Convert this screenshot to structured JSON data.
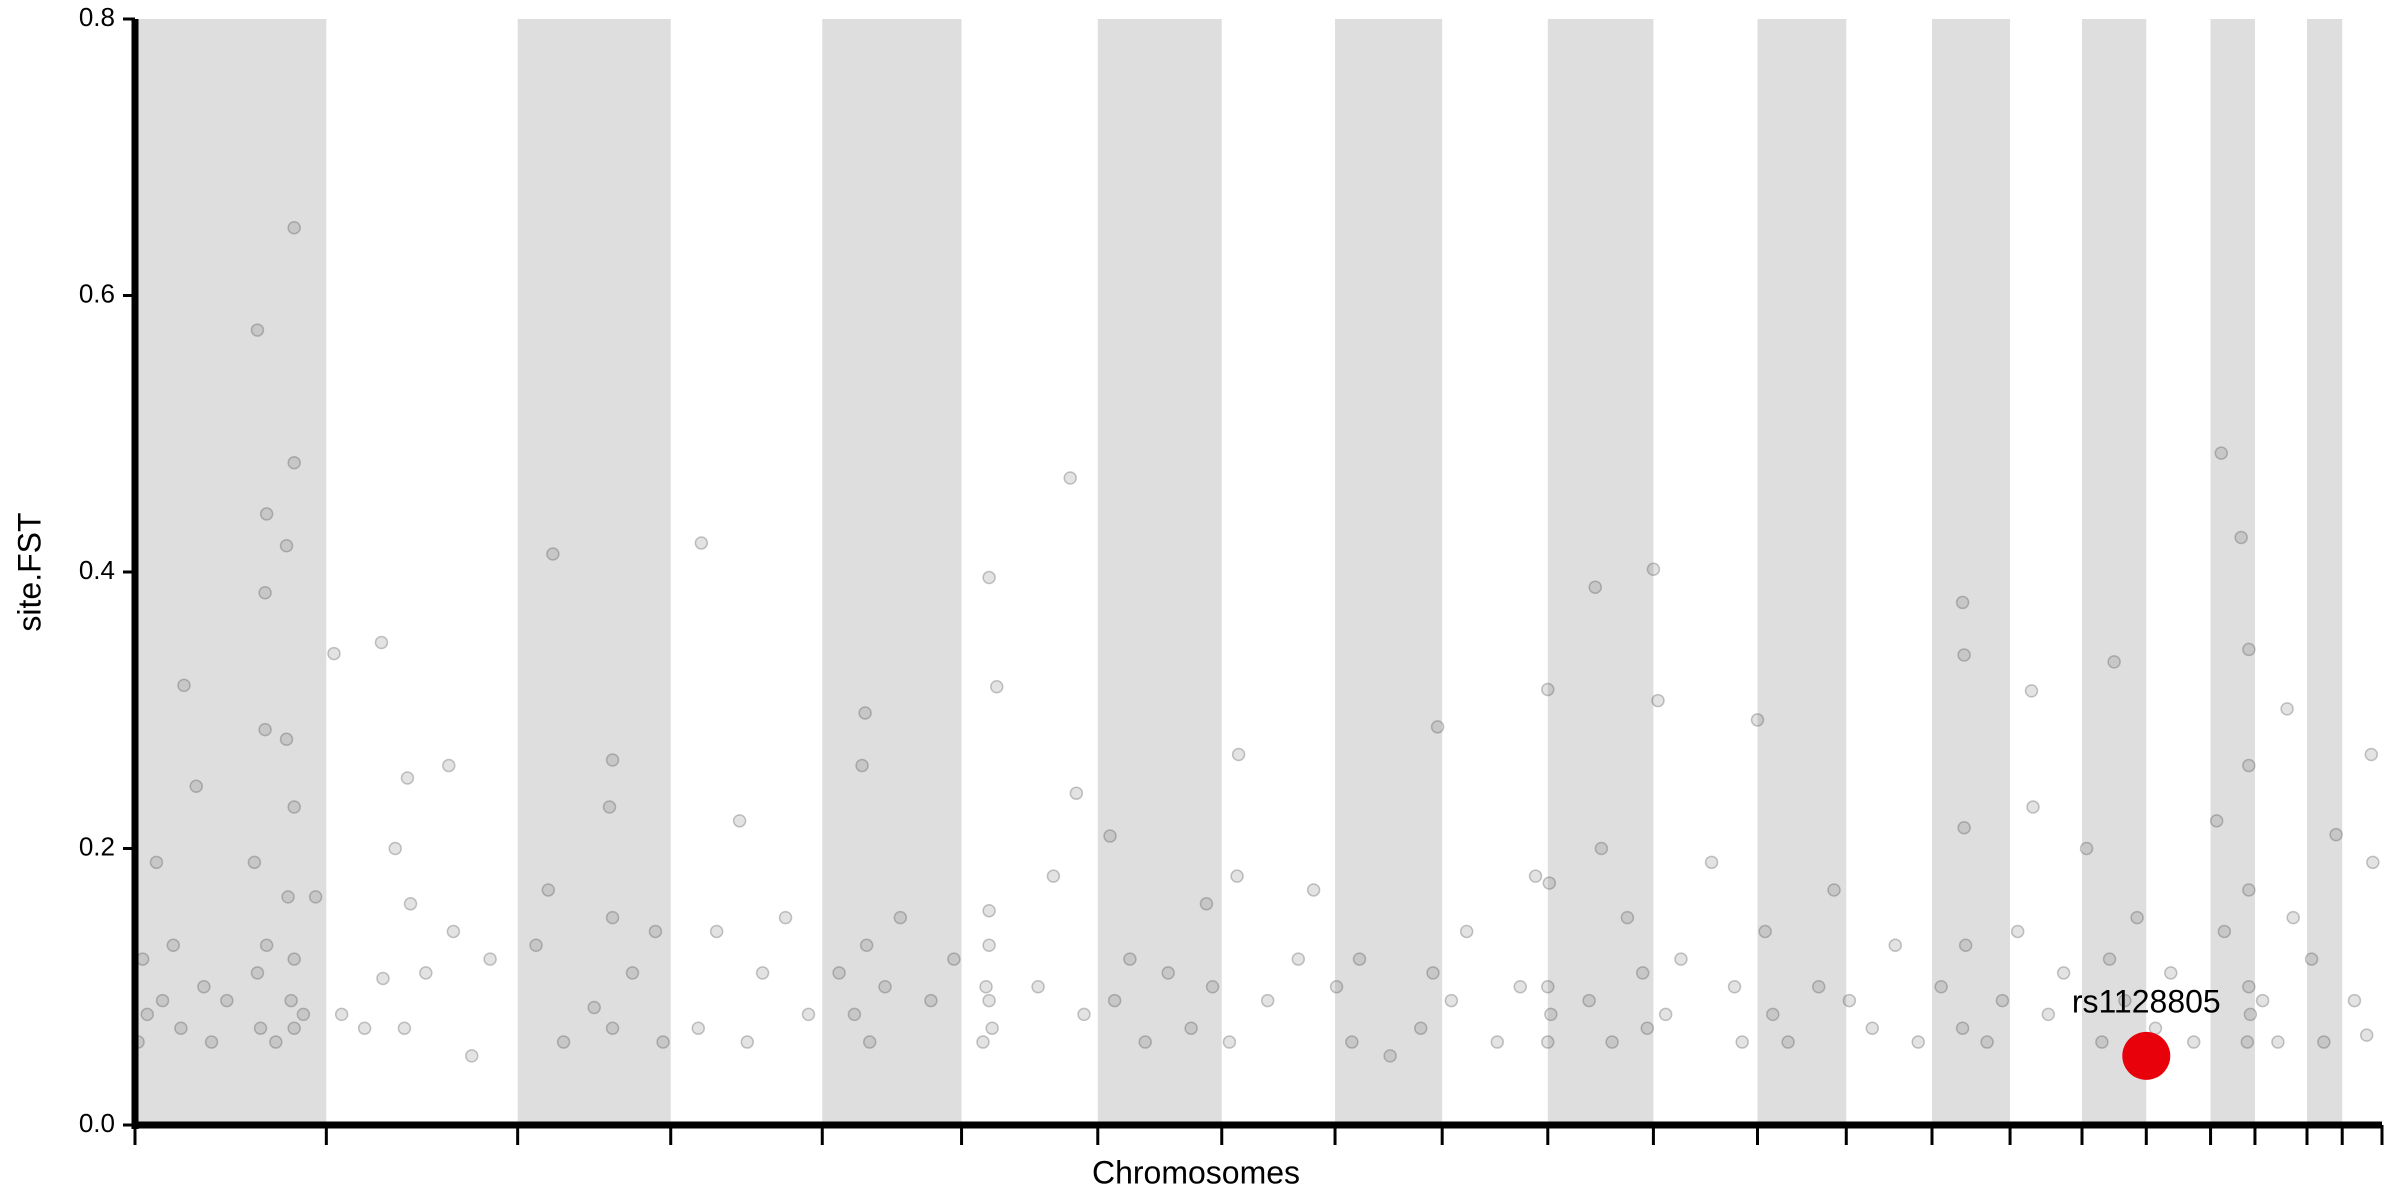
{
  "chart_data": {
    "type": "scatter",
    "xlabel": "Chromosomes",
    "ylabel": "site.FST",
    "xlim": [
      0,
      1468
    ],
    "xticks": [
      0,
      125,
      250,
      350,
      449,
      540,
      629,
      710,
      784,
      854,
      923,
      992,
      1060,
      1118,
      1174,
      1225,
      1272,
      1314,
      1356,
      1385,
      1419,
      1442,
      1468
    ],
    "ylim": [
      0,
      0.8
    ],
    "yticks": [
      {
        "value": 0,
        "label": "0.0"
      },
      0.2,
      0.4,
      0.6,
      0.8
    ],
    "band_color": "#dedede",
    "series": [
      {
        "color": "#444444",
        "x": [
          80,
          104,
          104,
          86,
          99,
          85,
          85,
          99,
          32,
          130,
          161,
          178,
          273,
          312,
          370,
          477,
          558,
          563,
          611,
          637,
          721,
          851,
          923,
          954,
          992,
          995,
          1060,
          1194,
          1195,
          1239,
          1293,
          1363,
          1376,
          1381,
          1406,
          1461,
          2,
          5,
          8,
          14,
          18,
          25,
          30,
          40,
          45,
          50,
          60,
          78,
          80,
          82,
          86,
          92,
          100,
          102,
          104,
          104,
          104,
          110,
          118,
          135,
          150,
          162,
          170,
          176,
          180,
          190,
          205,
          208,
          220,
          232,
          262,
          270,
          280,
          300,
          310,
          312,
          312,
          325,
          340,
          345,
          368,
          380,
          395,
          400,
          410,
          425,
          440,
          460,
          470,
          475,
          478,
          480,
          490,
          500,
          520,
          535,
          554,
          556,
          558,
          558,
          558,
          560,
          590,
          600,
          615,
          620,
          640,
          650,
          660,
          675,
          690,
          700,
          704,
          715,
          720,
          740,
          760,
          770,
          785,
          795,
          800,
          820,
          840,
          848,
          860,
          870,
          890,
          905,
          915,
          923,
          923,
          924,
          925,
          950,
          958,
          965,
          975,
          985,
          988,
          1000,
          1010,
          1030,
          1045,
          1050,
          1065,
          1070,
          1080,
          1100,
          1110,
          1120,
          1135,
          1150,
          1165,
          1180,
          1194,
          1195,
          1196,
          1210,
          1220,
          1230,
          1240,
          1250,
          1260,
          1275,
          1285,
          1290,
          1300,
          1308,
          1320,
          1330,
          1345,
          1360,
          1365,
          1380,
          1381,
          1381,
          1381,
          1382,
          1390,
          1400,
          1410,
          1422,
          1430,
          1438,
          1450,
          1458,
          1462
        ],
        "values": [
          0.575,
          0.649,
          0.479,
          0.442,
          0.419,
          0.385,
          0.286,
          0.279,
          0.318,
          0.341,
          0.349,
          0.251,
          0.413,
          0.264,
          0.421,
          0.298,
          0.396,
          0.317,
          0.468,
          0.209,
          0.268,
          0.288,
          0.315,
          0.389,
          0.402,
          0.307,
          0.293,
          0.378,
          0.34,
          0.314,
          0.335,
          0.486,
          0.425,
          0.344,
          0.301,
          0.268,
          0.06,
          0.12,
          0.08,
          0.19,
          0.09,
          0.13,
          0.07,
          0.245,
          0.1,
          0.06,
          0.09,
          0.19,
          0.11,
          0.07,
          0.13,
          0.06,
          0.165,
          0.09,
          0.07,
          0.23,
          0.12,
          0.08,
          0.165,
          0.08,
          0.07,
          0.106,
          0.2,
          0.07,
          0.16,
          0.11,
          0.26,
          0.14,
          0.05,
          0.12,
          0.13,
          0.17,
          0.06,
          0.085,
          0.23,
          0.07,
          0.15,
          0.11,
          0.14,
          0.06,
          0.07,
          0.14,
          0.22,
          0.06,
          0.11,
          0.15,
          0.08,
          0.11,
          0.08,
          0.26,
          0.13,
          0.06,
          0.1,
          0.15,
          0.09,
          0.12,
          0.06,
          0.1,
          0.155,
          0.09,
          0.13,
          0.07,
          0.1,
          0.18,
          0.24,
          0.08,
          0.09,
          0.12,
          0.06,
          0.11,
          0.07,
          0.16,
          0.1,
          0.06,
          0.18,
          0.09,
          0.12,
          0.17,
          0.1,
          0.06,
          0.12,
          0.05,
          0.07,
          0.11,
          0.09,
          0.14,
          0.06,
          0.1,
          0.18,
          0.06,
          0.1,
          0.175,
          0.08,
          0.09,
          0.2,
          0.06,
          0.15,
          0.11,
          0.07,
          0.08,
          0.12,
          0.19,
          0.1,
          0.06,
          0.14,
          0.08,
          0.06,
          0.1,
          0.17,
          0.09,
          0.07,
          0.13,
          0.06,
          0.1,
          0.07,
          0.215,
          0.13,
          0.06,
          0.09,
          0.14,
          0.23,
          0.08,
          0.11,
          0.2,
          0.06,
          0.12,
          0.09,
          0.15,
          0.07,
          0.11,
          0.06,
          0.22,
          0.14,
          0.06,
          0.26,
          0.17,
          0.1,
          0.08,
          0.09,
          0.06,
          0.15,
          0.12,
          0.06,
          0.21,
          0.09,
          0.065,
          0.19
        ]
      }
    ],
    "highlight": {
      "label": "rs1128805",
      "x": 1314,
      "y": 0.05,
      "color": "#e8000b"
    }
  }
}
